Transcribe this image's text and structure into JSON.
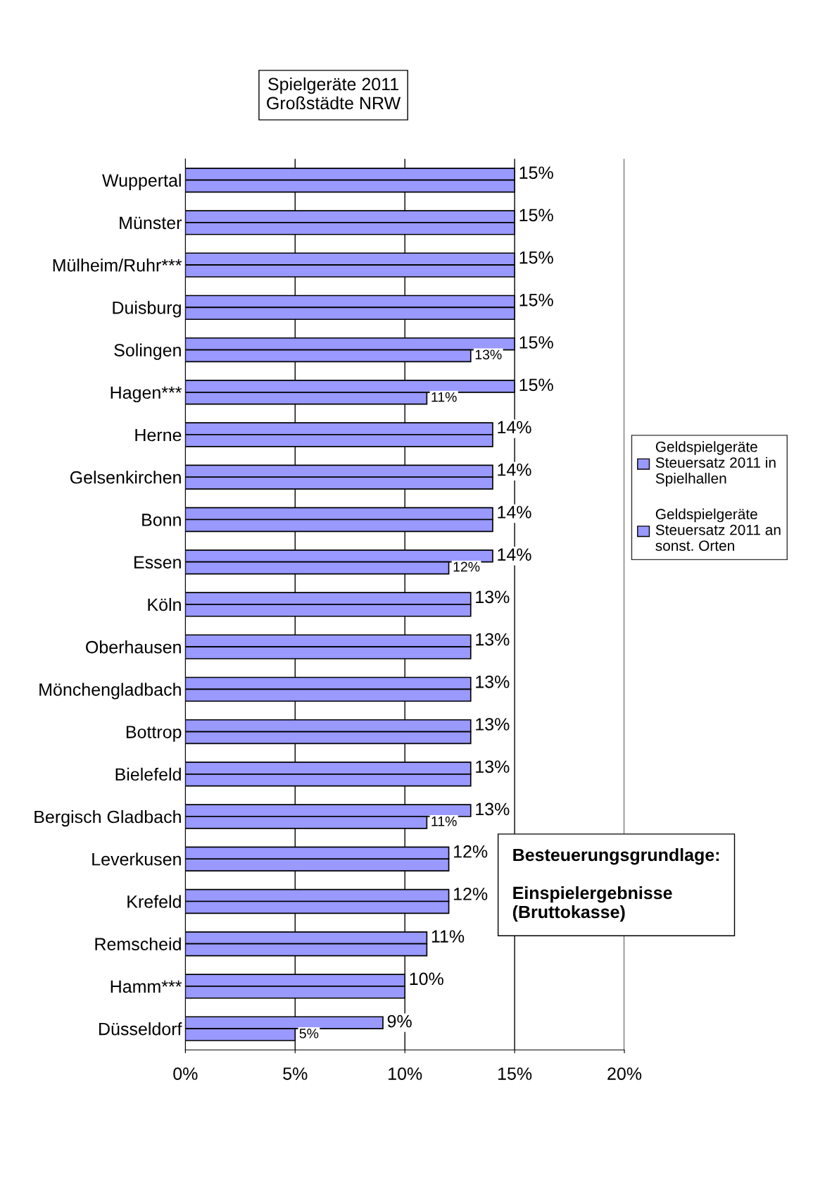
{
  "chart_data": {
    "type": "bar",
    "orientation": "horizontal",
    "title": "Spielgeräte 2011\nGroßstädte NRW",
    "categories": [
      "Wuppertal",
      "Münster",
      "Mülheim/Ruhr***",
      "Duisburg",
      "Solingen",
      "Hagen***",
      "Herne",
      "Gelsenkirchen",
      "Bonn",
      "Essen",
      "Köln",
      "Oberhausen",
      "Mönchengladbach",
      "Bottrop",
      "Bielefeld",
      "Bergisch Gladbach",
      "Leverkusen",
      "Krefeld",
      "Remscheid",
      "Hamm***",
      "Düsseldorf"
    ],
    "series": [
      {
        "name": "Geldspielgeräte\nSteuersatz 2011 in\nSpielhallen",
        "color": "#9999ff",
        "values": [
          15,
          15,
          15,
          15,
          15,
          15,
          14,
          14,
          14,
          14,
          13,
          13,
          13,
          13,
          13,
          13,
          12,
          12,
          11,
          10,
          9
        ],
        "value_labels": [
          "15%",
          "15%",
          "15%",
          "15%",
          "15%",
          "15%",
          "14%",
          "14%",
          "14%",
          "14%",
          "13%",
          "13%",
          "13%",
          "13%",
          "13%",
          "13%",
          "12%",
          "12%",
          "11%",
          "10%",
          "9%"
        ]
      },
      {
        "name": "Geldspielgeräte\nSteuersatz 2011 an\nsonst. Orten",
        "color": "#9999ff",
        "values": [
          15,
          15,
          15,
          15,
          13,
          11,
          14,
          14,
          14,
          12,
          13,
          13,
          13,
          13,
          13,
          11,
          12,
          12,
          11,
          10,
          5
        ],
        "value_labels": [
          null,
          null,
          null,
          null,
          "13%",
          "11%",
          null,
          null,
          null,
          "12%",
          null,
          null,
          null,
          null,
          null,
          "11%",
          null,
          null,
          null,
          null,
          "5%"
        ]
      }
    ],
    "xlim": [
      0,
      20
    ],
    "xticks": [
      {
        "value": 0,
        "label": "0%"
      },
      {
        "value": 5,
        "label": "5%"
      },
      {
        "value": 10,
        "label": "10%"
      },
      {
        "value": 15,
        "label": "15%"
      },
      {
        "value": 20,
        "label": "20%"
      }
    ],
    "grid": "x",
    "legend": "right",
    "annotations": [
      "Besteuerungsgrundlage:\n\nEinspielergebnisse\n(Bruttokasse)"
    ]
  }
}
